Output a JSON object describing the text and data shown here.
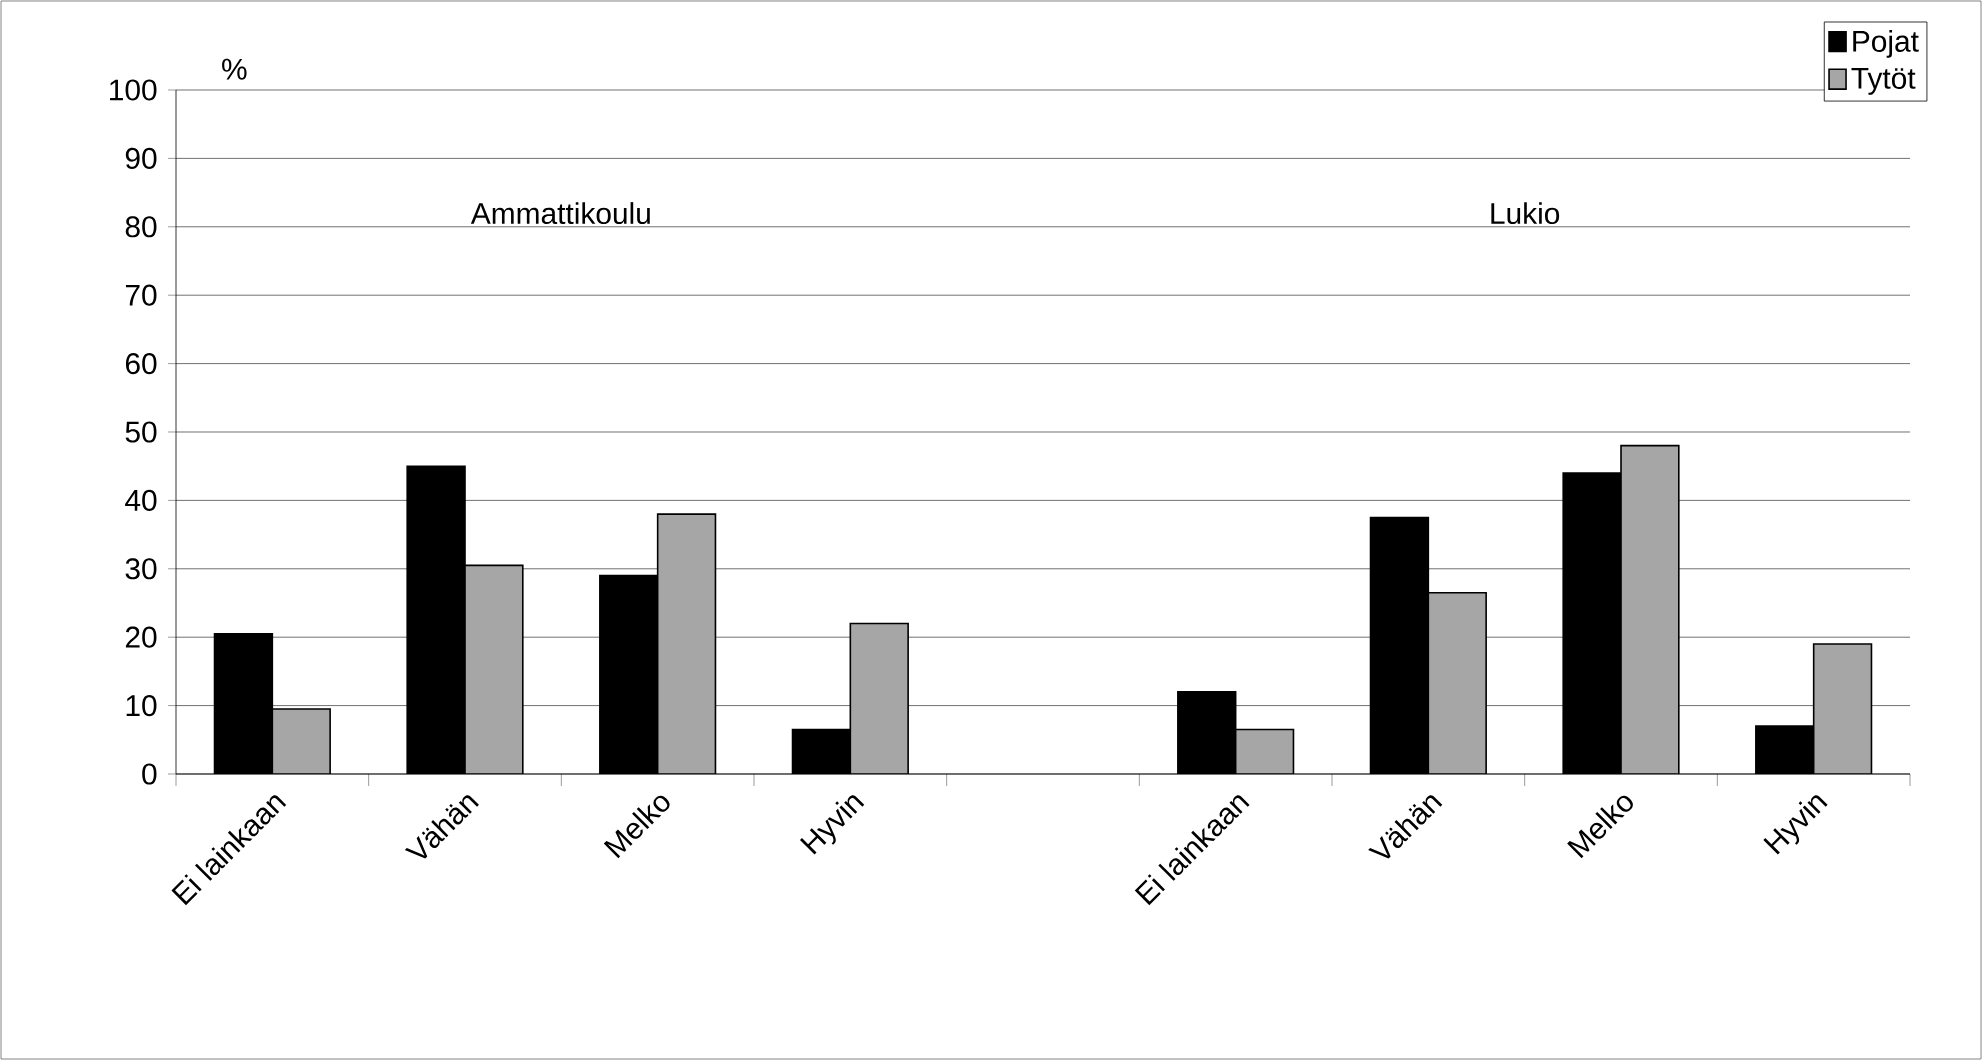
{
  "chart_data": {
    "type": "bar",
    "ylabel": "%",
    "categories": [
      "Ei lainkaan",
      "Vähän",
      "Melko",
      "Hyvin",
      null,
      "Ei lainkaan",
      "Vähän",
      "Melko",
      "Hyvin"
    ],
    "series": [
      {
        "name": "Pojat",
        "color": "#000000",
        "values": [
          20.5,
          45,
          29,
          6.5,
          null,
          12,
          37.5,
          44,
          7
        ]
      },
      {
        "name": "Tytöt",
        "color": "#a6a6a6",
        "values": [
          9.5,
          30.5,
          38,
          22,
          null,
          6.5,
          26.5,
          48,
          19
        ]
      }
    ],
    "ylim": [
      0,
      100
    ],
    "yticks": [
      0,
      10,
      20,
      30,
      40,
      50,
      60,
      70,
      80,
      90,
      100
    ],
    "grid": "y",
    "legend": "top right",
    "annotations": [
      "Ammattikoulu",
      "Lukio"
    ]
  }
}
